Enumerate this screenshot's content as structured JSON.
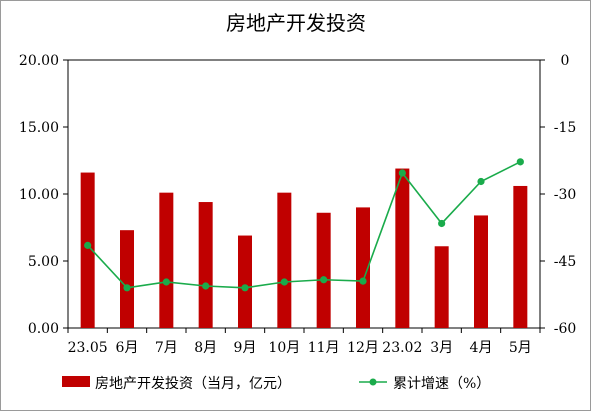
{
  "chart_data": {
    "type": "bar",
    "title": "房地产开发投资",
    "categories": [
      "23.05",
      "6月",
      "7月",
      "8月",
      "9月",
      "10月",
      "11月",
      "12月",
      "23.02",
      "3月",
      "4月",
      "5月"
    ],
    "series": [
      {
        "name": "房地产开发投资（当月，亿元）",
        "type": "bar",
        "axis": "left",
        "values": [
          11.6,
          7.3,
          10.1,
          9.4,
          6.9,
          10.1,
          8.6,
          9.0,
          11.9,
          6.1,
          8.4,
          10.6
        ]
      },
      {
        "name": "累计增速（%）",
        "type": "line",
        "axis": "right",
        "values": [
          -41.5,
          -51.0,
          -49.7,
          -50.6,
          -51.0,
          -49.7,
          -49.2,
          -49.5,
          -25.3,
          -36.6,
          -27.2,
          -22.8
        ]
      }
    ],
    "y_left": {
      "min": 0,
      "max": 20,
      "ticks": [
        "0.00",
        "5.00",
        "10.00",
        "15.00",
        "20.00"
      ]
    },
    "y_right": {
      "min": -60,
      "max": 0,
      "ticks": [
        "-60",
        "-45",
        "-30",
        "-15",
        "0"
      ]
    },
    "legend": "bottom",
    "grid": false,
    "colors": {
      "bar": "#c00000",
      "line": "#1aab4b"
    }
  }
}
